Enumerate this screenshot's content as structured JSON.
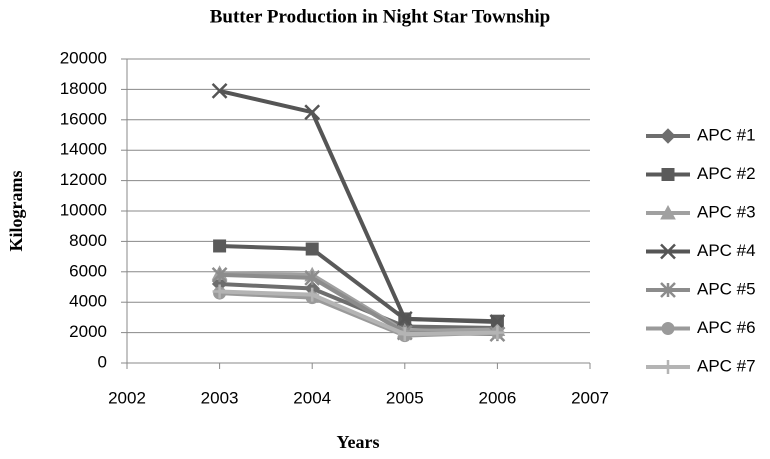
{
  "chart_data": {
    "type": "line",
    "title": "Butter Production in Night Star Township",
    "x_label": "Years",
    "y_label": "Kilograms",
    "x": [
      2003,
      2004,
      2005,
      2006
    ],
    "xlim": [
      2002,
      2007
    ],
    "xticks": [
      2002,
      2003,
      2004,
      2005,
      2006,
      2007
    ],
    "ylim": [
      0,
      20000
    ],
    "yticks": [
      0,
      2000,
      4000,
      6000,
      8000,
      10000,
      12000,
      14000,
      16000,
      18000,
      20000
    ],
    "grid": true,
    "legend": "right",
    "series": [
      {
        "name": "APC #1",
        "color": "#6e6e6e",
        "marker": "diamond",
        "values": [
          5200,
          4900,
          2400,
          2300
        ]
      },
      {
        "name": "APC #2",
        "color": "#5a5a5a",
        "marker": "square",
        "values": [
          7700,
          7500,
          2900,
          2750
        ]
      },
      {
        "name": "APC #3",
        "color": "#a0a0a0",
        "marker": "triangle",
        "values": [
          5900,
          5800,
          2100,
          2200
        ]
      },
      {
        "name": "APC #4",
        "color": "#555555",
        "marker": "x",
        "values": [
          17900,
          16500,
          2900,
          2700
        ]
      },
      {
        "name": "APC #5",
        "color": "#8c8c8c",
        "marker": "star",
        "values": [
          5800,
          5600,
          2000,
          1900
        ]
      },
      {
        "name": "APC #6",
        "color": "#9a9a9a",
        "marker": "circle",
        "values": [
          4600,
          4300,
          1800,
          2000
        ]
      },
      {
        "name": "APC #7",
        "color": "#b4b4b4",
        "marker": "plus",
        "values": [
          4700,
          4500,
          1900,
          2000
        ]
      }
    ]
  }
}
